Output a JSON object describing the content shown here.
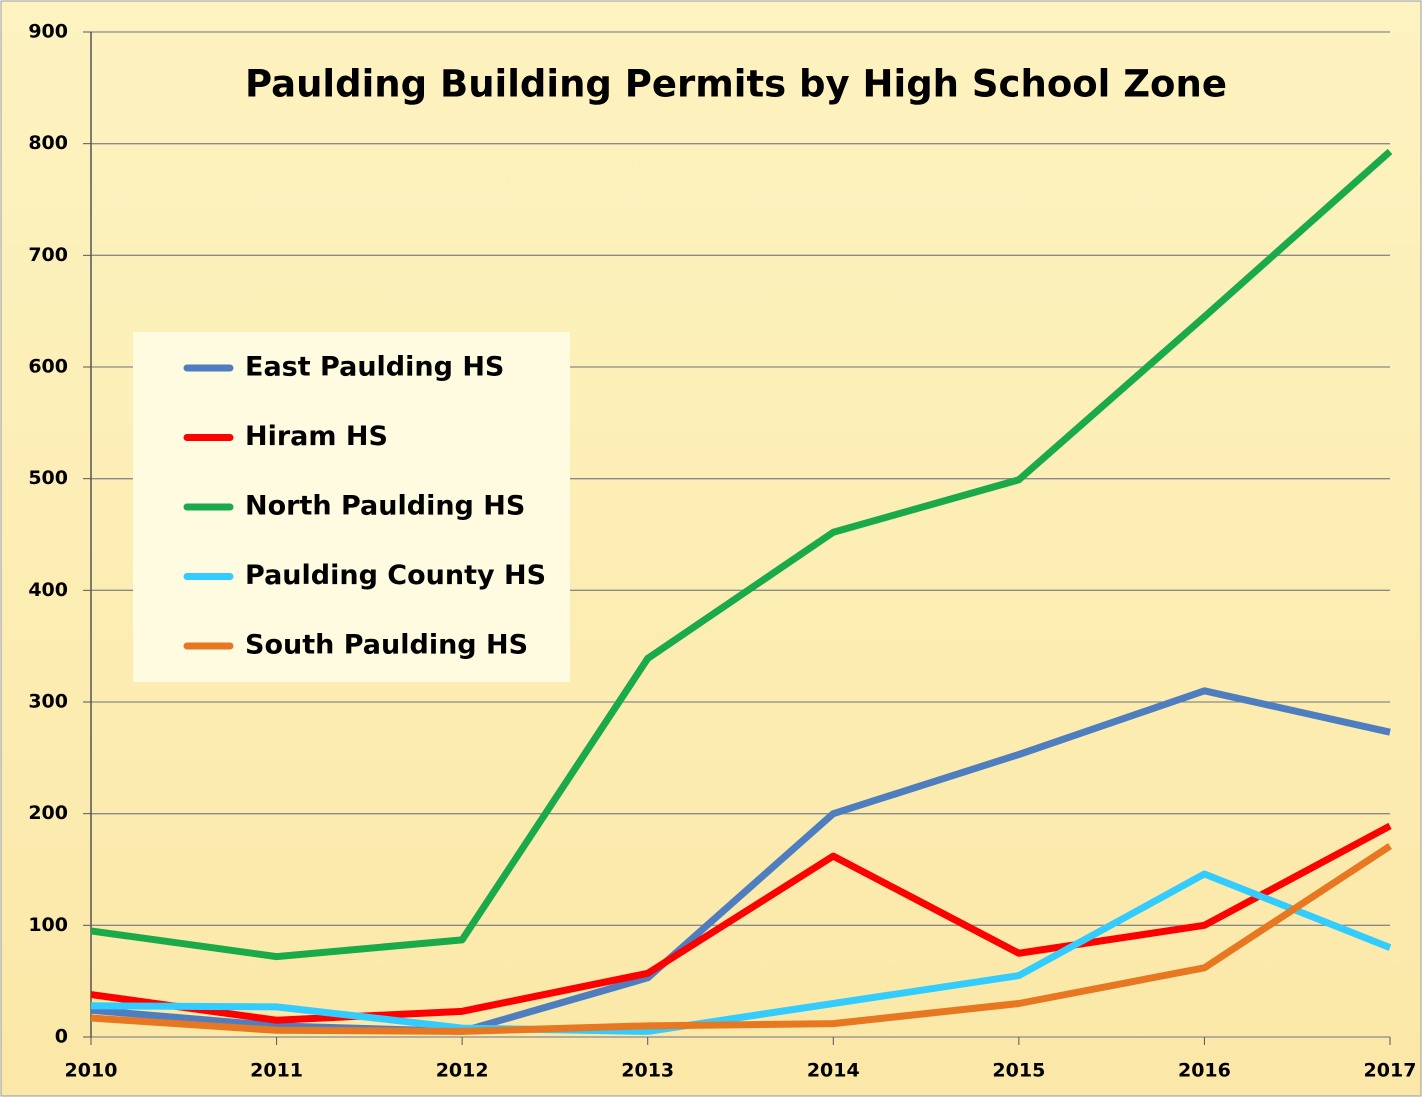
{
  "chart_data": {
    "type": "line",
    "title": "Paulding Building Permits by High School Zone",
    "x": [
      2010,
      2011,
      2012,
      2013,
      2014,
      2015,
      2016,
      2017
    ],
    "xlim": [
      2010,
      2017
    ],
    "xticks": [
      2010,
      2011,
      2012,
      2013,
      2014,
      2015,
      2016,
      2017
    ],
    "ylim": [
      0,
      900
    ],
    "yticks": [
      0,
      100,
      200,
      300,
      400,
      500,
      600,
      700,
      800,
      900
    ],
    "grid": true,
    "legend": "left",
    "series": [
      {
        "name": "East Paulding HS",
        "color": "#4f7ec0",
        "values": [
          24,
          10,
          5,
          53,
          200,
          253,
          310,
          273
        ]
      },
      {
        "name": "Hiram HS",
        "color": "#ff0000",
        "values": [
          38,
          15,
          23,
          57,
          162,
          75,
          100,
          189
        ]
      },
      {
        "name": "North Paulding HS",
        "color": "#1aaa4a",
        "values": [
          95,
          72,
          87,
          339,
          452,
          499,
          645,
          793
        ]
      },
      {
        "name": "Paulding County HS",
        "color": "#33ccff",
        "values": [
          28,
          27,
          8,
          5,
          30,
          55,
          146,
          80
        ]
      },
      {
        "name": "South Paulding HS",
        "color": "#e87722",
        "values": [
          17,
          6,
          5,
          10,
          12,
          30,
          62,
          171
        ]
      }
    ]
  }
}
